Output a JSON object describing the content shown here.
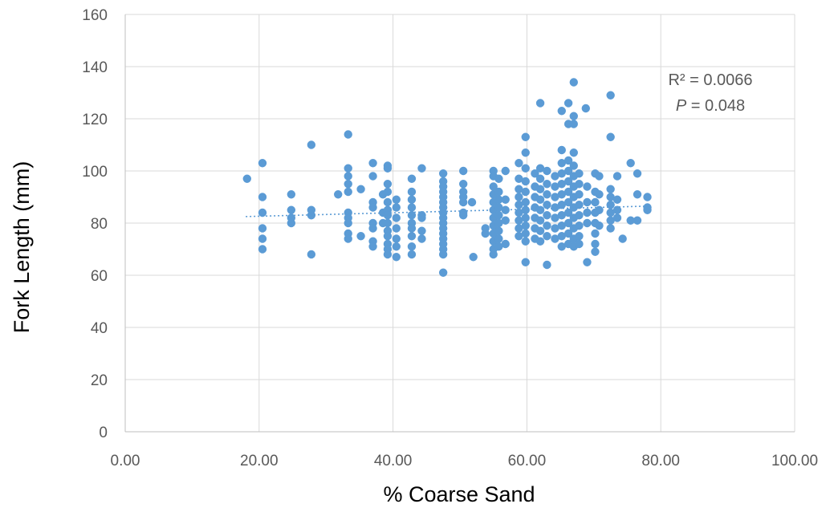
{
  "chart_data": {
    "type": "scatter",
    "title": "",
    "xlabel": "% Coarse Sand",
    "ylabel": "Fork Length (mm)",
    "xlim": [
      0,
      100
    ],
    "ylim": [
      0,
      160
    ],
    "x_ticks": [
      "0.00",
      "20.00",
      "40.00",
      "60.00",
      "80.00",
      "100.00"
    ],
    "y_ticks": [
      "0",
      "20",
      "40",
      "60",
      "80",
      "100",
      "120",
      "140",
      "160"
    ],
    "grid": true,
    "legend": "none",
    "colors": {
      "points": "#5b9bd5",
      "trendline": "#5b9bd5",
      "grid": "#d9d9d9"
    },
    "annotation": {
      "r2": "R² = 0.0066",
      "p_label": "P",
      "p_value": " = 0.048"
    },
    "trendline": {
      "x": [
        18.0,
        78.0
      ],
      "y": [
        82.5,
        86.5
      ]
    },
    "series": [
      {
        "points": [
          [
            18.2,
            97
          ],
          [
            20.5,
            103
          ],
          [
            20.5,
            90
          ],
          [
            20.5,
            84
          ],
          [
            20.5,
            78
          ],
          [
            20.5,
            74
          ],
          [
            20.5,
            70
          ],
          [
            24.8,
            91
          ],
          [
            24.8,
            85
          ],
          [
            24.8,
            82
          ],
          [
            24.8,
            80
          ],
          [
            27.8,
            110
          ],
          [
            27.8,
            85
          ],
          [
            27.8,
            83
          ],
          [
            27.8,
            68
          ],
          [
            31.8,
            91
          ],
          [
            33.3,
            114
          ],
          [
            33.3,
            101
          ],
          [
            33.3,
            98
          ],
          [
            33.3,
            95
          ],
          [
            33.3,
            92
          ],
          [
            33.3,
            84
          ],
          [
            33.3,
            82
          ],
          [
            33.3,
            80
          ],
          [
            33.3,
            76
          ],
          [
            33.3,
            74
          ],
          [
            35.2,
            93
          ],
          [
            35.2,
            75
          ],
          [
            37.0,
            103
          ],
          [
            37.0,
            98
          ],
          [
            37.0,
            88
          ],
          [
            37.0,
            86
          ],
          [
            37.0,
            80
          ],
          [
            37.0,
            78
          ],
          [
            37.0,
            73
          ],
          [
            37.0,
            71
          ],
          [
            38.5,
            91
          ],
          [
            38.5,
            84
          ],
          [
            38.5,
            80
          ],
          [
            39.2,
            102
          ],
          [
            39.2,
            101
          ],
          [
            39.2,
            95
          ],
          [
            39.2,
            92
          ],
          [
            39.2,
            88
          ],
          [
            39.2,
            85
          ],
          [
            39.2,
            83
          ],
          [
            39.2,
            80
          ],
          [
            39.2,
            77
          ],
          [
            39.2,
            75
          ],
          [
            39.2,
            72
          ],
          [
            39.2,
            70
          ],
          [
            39.2,
            68
          ],
          [
            40.5,
            89
          ],
          [
            40.5,
            86
          ],
          [
            40.5,
            82
          ],
          [
            40.5,
            78
          ],
          [
            40.5,
            74
          ],
          [
            40.5,
            71
          ],
          [
            40.5,
            67
          ],
          [
            42.8,
            97
          ],
          [
            42.8,
            92
          ],
          [
            42.8,
            89
          ],
          [
            42.8,
            86
          ],
          [
            42.8,
            83
          ],
          [
            42.8,
            80
          ],
          [
            42.8,
            78
          ],
          [
            42.8,
            75
          ],
          [
            42.8,
            71
          ],
          [
            42.8,
            68
          ],
          [
            44.3,
            101
          ],
          [
            44.3,
            83
          ],
          [
            44.3,
            82
          ],
          [
            44.3,
            77
          ],
          [
            44.3,
            74
          ],
          [
            47.5,
            99
          ],
          [
            47.5,
            96
          ],
          [
            47.5,
            94
          ],
          [
            47.5,
            92
          ],
          [
            47.5,
            90
          ],
          [
            47.5,
            88
          ],
          [
            47.5,
            86
          ],
          [
            47.5,
            84
          ],
          [
            47.5,
            82
          ],
          [
            47.5,
            80
          ],
          [
            47.5,
            78
          ],
          [
            47.5,
            76
          ],
          [
            47.5,
            74
          ],
          [
            47.5,
            72
          ],
          [
            47.5,
            70
          ],
          [
            47.5,
            68
          ],
          [
            47.5,
            61
          ],
          [
            50.5,
            100
          ],
          [
            50.5,
            95
          ],
          [
            50.5,
            92
          ],
          [
            50.5,
            90
          ],
          [
            50.5,
            88
          ],
          [
            50.5,
            84
          ],
          [
            50.5,
            83
          ],
          [
            51.8,
            88
          ],
          [
            52.0,
            67
          ],
          [
            53.8,
            78
          ],
          [
            53.8,
            76
          ],
          [
            55.0,
            100
          ],
          [
            55.0,
            98
          ],
          [
            55.0,
            94
          ],
          [
            55.0,
            91
          ],
          [
            55.0,
            88
          ],
          [
            55.0,
            85
          ],
          [
            55.0,
            82
          ],
          [
            55.0,
            79
          ],
          [
            55.0,
            76
          ],
          [
            55.0,
            73
          ],
          [
            55.0,
            70
          ],
          [
            55.0,
            68
          ],
          [
            55.8,
            97
          ],
          [
            55.8,
            92
          ],
          [
            55.8,
            89
          ],
          [
            55.8,
            86
          ],
          [
            55.8,
            83
          ],
          [
            55.8,
            80
          ],
          [
            55.8,
            77
          ],
          [
            55.8,
            74
          ],
          [
            55.8,
            71
          ],
          [
            56.8,
            100
          ],
          [
            56.8,
            89
          ],
          [
            56.8,
            85
          ],
          [
            56.8,
            81
          ],
          [
            56.8,
            72
          ],
          [
            58.8,
            103
          ],
          [
            58.8,
            97
          ],
          [
            58.8,
            93
          ],
          [
            58.8,
            90
          ],
          [
            58.8,
            87
          ],
          [
            58.8,
            84
          ],
          [
            58.8,
            81
          ],
          [
            58.8,
            78
          ],
          [
            58.8,
            75
          ],
          [
            59.8,
            113
          ],
          [
            59.8,
            107
          ],
          [
            59.8,
            101
          ],
          [
            59.8,
            96
          ],
          [
            59.8,
            92
          ],
          [
            59.8,
            88
          ],
          [
            59.8,
            85
          ],
          [
            59.8,
            82
          ],
          [
            59.8,
            79
          ],
          [
            59.8,
            76
          ],
          [
            59.8,
            73
          ],
          [
            59.8,
            65
          ],
          [
            61.2,
            99
          ],
          [
            61.2,
            94
          ],
          [
            61.2,
            90
          ],
          [
            61.2,
            86
          ],
          [
            61.2,
            82
          ],
          [
            61.2,
            78
          ],
          [
            61.2,
            74
          ],
          [
            62.0,
            126
          ],
          [
            62.0,
            101
          ],
          [
            62.0,
            97
          ],
          [
            62.0,
            93
          ],
          [
            62.0,
            89
          ],
          [
            62.0,
            85
          ],
          [
            62.0,
            81
          ],
          [
            62.0,
            77
          ],
          [
            62.0,
            73
          ],
          [
            63.0,
            100
          ],
          [
            63.0,
            95
          ],
          [
            63.0,
            91
          ],
          [
            63.0,
            87
          ],
          [
            63.0,
            83
          ],
          [
            63.0,
            79
          ],
          [
            63.0,
            75
          ],
          [
            63.0,
            64
          ],
          [
            64.2,
            98
          ],
          [
            64.2,
            94
          ],
          [
            64.2,
            90
          ],
          [
            64.2,
            86
          ],
          [
            64.2,
            82
          ],
          [
            64.2,
            78
          ],
          [
            64.2,
            74
          ],
          [
            65.2,
            123
          ],
          [
            65.2,
            108
          ],
          [
            65.2,
            103
          ],
          [
            65.2,
            99
          ],
          [
            65.2,
            95
          ],
          [
            65.2,
            91
          ],
          [
            65.2,
            87
          ],
          [
            65.2,
            83
          ],
          [
            65.2,
            79
          ],
          [
            65.2,
            75
          ],
          [
            65.2,
            71
          ],
          [
            66.2,
            126
          ],
          [
            66.2,
            118
          ],
          [
            66.2,
            104
          ],
          [
            66.2,
            100
          ],
          [
            66.2,
            96
          ],
          [
            66.2,
            92
          ],
          [
            66.2,
            88
          ],
          [
            66.2,
            84
          ],
          [
            66.2,
            80
          ],
          [
            66.2,
            76
          ],
          [
            66.2,
            72
          ],
          [
            67.0,
            134
          ],
          [
            67.0,
            121
          ],
          [
            67.0,
            118
          ],
          [
            67.0,
            107
          ],
          [
            67.0,
            102
          ],
          [
            67.0,
            98
          ],
          [
            67.0,
            94
          ],
          [
            67.0,
            90
          ],
          [
            67.0,
            86
          ],
          [
            67.0,
            82
          ],
          [
            67.0,
            78
          ],
          [
            67.0,
            74
          ],
          [
            67.0,
            71
          ],
          [
            67.8,
            99
          ],
          [
            67.8,
            95
          ],
          [
            67.8,
            91
          ],
          [
            67.8,
            87
          ],
          [
            67.8,
            83
          ],
          [
            67.8,
            79
          ],
          [
            67.8,
            75
          ],
          [
            67.8,
            72
          ],
          [
            68.8,
            124
          ],
          [
            69.0,
            94
          ],
          [
            69.0,
            88
          ],
          [
            69.0,
            84
          ],
          [
            69.0,
            80
          ],
          [
            69.0,
            65
          ],
          [
            70.2,
            99
          ],
          [
            70.2,
            92
          ],
          [
            70.2,
            88
          ],
          [
            70.2,
            84
          ],
          [
            70.2,
            80
          ],
          [
            70.2,
            76
          ],
          [
            70.2,
            72
          ],
          [
            70.2,
            69
          ],
          [
            70.8,
            98
          ],
          [
            70.8,
            91
          ],
          [
            70.8,
            85
          ],
          [
            70.8,
            79
          ],
          [
            72.5,
            129
          ],
          [
            72.5,
            113
          ],
          [
            72.5,
            93
          ],
          [
            72.5,
            90
          ],
          [
            72.5,
            87
          ],
          [
            72.5,
            84
          ],
          [
            72.5,
            81
          ],
          [
            72.5,
            78
          ],
          [
            73.5,
            98
          ],
          [
            73.5,
            89
          ],
          [
            73.5,
            85
          ],
          [
            73.5,
            82
          ],
          [
            74.3,
            74
          ],
          [
            75.5,
            103
          ],
          [
            75.5,
            81
          ],
          [
            76.5,
            99
          ],
          [
            76.5,
            91
          ],
          [
            76.5,
            81
          ],
          [
            78.0,
            90
          ],
          [
            78.0,
            86
          ],
          [
            78.0,
            85
          ]
        ]
      }
    ]
  }
}
